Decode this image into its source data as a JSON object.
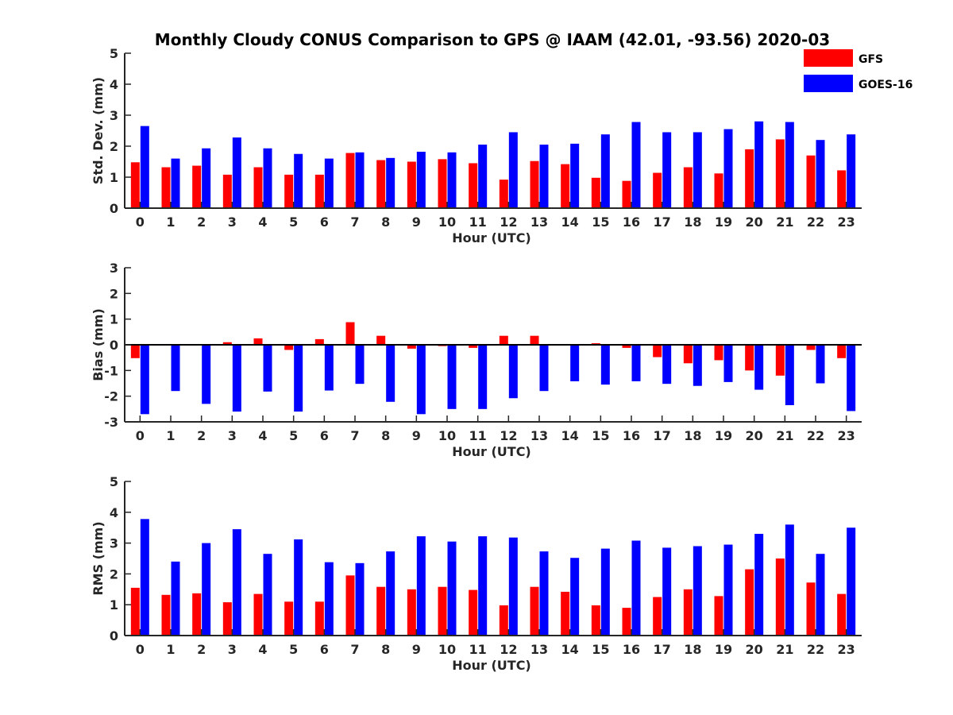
{
  "title": "Monthly Cloudy CONUS Comparison to GPS @ IAAM (42.01, -93.56) 2020-03",
  "legend": {
    "placement": "top-right",
    "items": [
      {
        "label": "GFS",
        "color": "#ff0000"
      },
      {
        "label": "GOES-16",
        "color": "#0000ff"
      }
    ]
  },
  "chart_data": [
    {
      "type": "bar",
      "xlabel": "Hour (UTC)",
      "ylabel": "Std. Dev. (mm)",
      "ylim": [
        0,
        5
      ],
      "yticks": [
        0,
        1,
        2,
        3,
        4,
        5
      ],
      "categories": [
        "0",
        "1",
        "2",
        "3",
        "4",
        "5",
        "6",
        "7",
        "8",
        "9",
        "10",
        "11",
        "12",
        "13",
        "14",
        "15",
        "16",
        "17",
        "18",
        "19",
        "20",
        "21",
        "22",
        "23"
      ],
      "series": [
        {
          "name": "GFS",
          "color": "#ff0000",
          "values": [
            1.48,
            1.32,
            1.37,
            1.08,
            1.32,
            1.08,
            1.08,
            1.78,
            1.55,
            1.5,
            1.58,
            1.45,
            0.92,
            1.52,
            1.42,
            0.98,
            0.88,
            1.14,
            1.32,
            1.12,
            1.9,
            2.22,
            1.7,
            1.22
          ]
        },
        {
          "name": "GOES-16",
          "color": "#0000ff",
          "values": [
            2.65,
            1.6,
            1.93,
            2.28,
            1.93,
            1.75,
            1.6,
            1.8,
            1.62,
            1.82,
            1.8,
            2.05,
            2.45,
            2.05,
            2.08,
            2.38,
            2.78,
            2.45,
            2.45,
            2.55,
            2.8,
            2.78,
            2.2,
            2.38
          ]
        }
      ]
    },
    {
      "type": "bar",
      "xlabel": "Hour (UTC)",
      "ylabel": "Bias (mm)",
      "ylim": [
        -3,
        3
      ],
      "yticks": [
        -3,
        -2,
        -1,
        0,
        1,
        2,
        3
      ],
      "categories": [
        "0",
        "1",
        "2",
        "3",
        "4",
        "5",
        "6",
        "7",
        "8",
        "9",
        "10",
        "11",
        "12",
        "13",
        "14",
        "15",
        "16",
        "17",
        "18",
        "19",
        "20",
        "21",
        "22",
        "23"
      ],
      "series": [
        {
          "name": "GFS",
          "color": "#ff0000",
          "values": [
            -0.52,
            0.02,
            0.03,
            0.1,
            0.25,
            -0.2,
            0.22,
            0.88,
            0.35,
            -0.15,
            -0.05,
            -0.12,
            0.35,
            0.35,
            0.03,
            0.06,
            -0.12,
            -0.48,
            -0.72,
            -0.6,
            -1.0,
            -1.2,
            -0.2,
            -0.52
          ]
        },
        {
          "name": "GOES-16",
          "color": "#0000ff",
          "values": [
            -2.7,
            -1.8,
            -2.3,
            -2.6,
            -1.82,
            -2.6,
            -1.78,
            -1.52,
            -2.22,
            -2.7,
            -2.5,
            -2.5,
            -2.08,
            -1.8,
            -1.42,
            -1.55,
            -1.42,
            -1.52,
            -1.6,
            -1.45,
            -1.75,
            -2.35,
            -1.5,
            -2.58
          ]
        }
      ]
    },
    {
      "type": "bar",
      "xlabel": "Hour (UTC)",
      "ylabel": "RMS (mm)",
      "ylim": [
        0,
        5
      ],
      "yticks": [
        0,
        1,
        2,
        3,
        4,
        5
      ],
      "categories": [
        "0",
        "1",
        "2",
        "3",
        "4",
        "5",
        "6",
        "7",
        "8",
        "9",
        "10",
        "11",
        "12",
        "13",
        "14",
        "15",
        "16",
        "17",
        "18",
        "19",
        "20",
        "21",
        "22",
        "23"
      ],
      "series": [
        {
          "name": "GFS",
          "color": "#ff0000",
          "values": [
            1.55,
            1.32,
            1.37,
            1.08,
            1.35,
            1.1,
            1.1,
            1.95,
            1.58,
            1.5,
            1.58,
            1.48,
            0.98,
            1.58,
            1.42,
            0.98,
            0.9,
            1.25,
            1.5,
            1.28,
            2.15,
            2.5,
            1.72,
            1.35
          ]
        },
        {
          "name": "GOES-16",
          "color": "#0000ff",
          "values": [
            3.78,
            2.4,
            3.0,
            3.45,
            2.65,
            3.12,
            2.38,
            2.35,
            2.73,
            3.22,
            3.05,
            3.22,
            3.18,
            2.73,
            2.52,
            2.82,
            3.08,
            2.85,
            2.9,
            2.95,
            3.3,
            3.6,
            2.65,
            3.5
          ]
        }
      ]
    }
  ]
}
